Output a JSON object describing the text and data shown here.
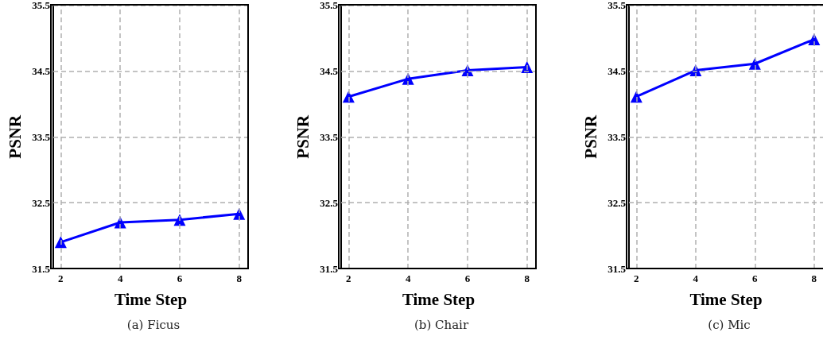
{
  "chart_data": [
    {
      "type": "line",
      "title": "(a) Ficus",
      "xlabel": "Time Step",
      "ylabel": "PSNR",
      "x": [
        2,
        4,
        6,
        8
      ],
      "series": [
        {
          "color": "#0000ff",
          "values": [
            31.9,
            32.2,
            32.24,
            32.33
          ]
        }
      ],
      "xlim": [
        1.75,
        8.3
      ],
      "xticks": [
        2,
        4,
        6,
        8
      ],
      "ylim": [
        31.5,
        35.5
      ],
      "yticks": [
        31.5,
        32.5,
        33.5,
        34.5,
        35.5
      ],
      "grid": true,
      "marker": "triangle",
      "line_style": "solid"
    },
    {
      "type": "line",
      "title": "(b) Chair",
      "xlabel": "Time Step",
      "ylabel": "PSNR",
      "x": [
        2,
        4,
        6,
        8
      ],
      "series": [
        {
          "color": "#0000ff",
          "values": [
            34.11,
            34.38,
            34.51,
            34.56
          ]
        }
      ],
      "xlim": [
        1.75,
        8.3
      ],
      "xticks": [
        2,
        4,
        6,
        8
      ],
      "ylim": [
        31.5,
        35.5
      ],
      "yticks": [
        31.5,
        32.5,
        33.5,
        34.5,
        35.5
      ],
      "grid": true,
      "marker": "triangle",
      "line_style": "solid"
    },
    {
      "type": "line",
      "title": "(c) Mic",
      "xlabel": "Time Step",
      "ylabel": "PSNR",
      "x": [
        2,
        4,
        6,
        8
      ],
      "series": [
        {
          "color": "#0000ff",
          "values": [
            34.11,
            34.51,
            34.61,
            34.98
          ]
        }
      ],
      "xlim": [
        1.75,
        8.3
      ],
      "xticks": [
        2,
        4,
        6,
        8
      ],
      "ylim": [
        31.5,
        35.5
      ],
      "yticks": [
        31.5,
        32.5,
        33.5,
        34.5,
        35.5
      ],
      "grid": true,
      "marker": "triangle",
      "line_style": "solid"
    }
  ]
}
